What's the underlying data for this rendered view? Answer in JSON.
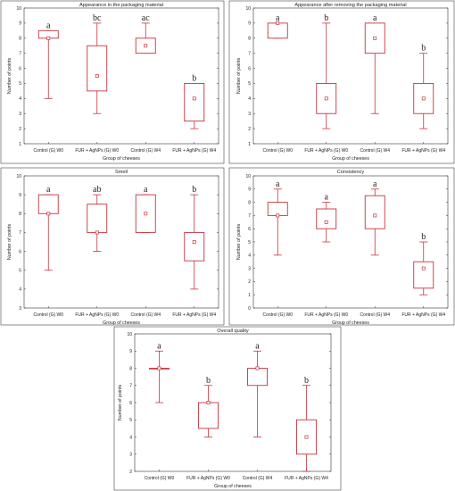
{
  "chart_data": [
    {
      "type": "box",
      "title": "Appearance in the packaging material",
      "xlabel": "Group of cheeses",
      "ylabel": "Number of points",
      "ylim": [
        1,
        10
      ],
      "yticks": [
        1,
        2,
        3,
        4,
        5,
        6,
        7,
        8,
        9,
        10
      ],
      "categories": [
        "Control (G) W0",
        "FUR + AgNPs (G) W0",
        "Control (G) W4",
        "FUR + AgNPs (G) W4"
      ],
      "boxes": [
        {
          "min": 4,
          "q1": 8,
          "median": 8,
          "q3": 8.5,
          "max": 8.5,
          "letter": "a"
        },
        {
          "min": 3,
          "q1": 4.5,
          "median": 5.5,
          "q3": 7.5,
          "max": 9,
          "letter": "bc"
        },
        {
          "min": 7,
          "q1": 7,
          "median": 7.5,
          "q3": 8,
          "max": 9,
          "letter": "ac"
        },
        {
          "min": 2,
          "q1": 2.5,
          "median": 4,
          "q3": 5,
          "max": 5,
          "letter": "b"
        }
      ]
    },
    {
      "type": "box",
      "title": "Appearance after removing the packaging material",
      "xlabel": "Group of cheeses",
      "ylabel": "Number of points",
      "ylim": [
        1,
        10
      ],
      "yticks": [
        1,
        2,
        3,
        4,
        5,
        6,
        7,
        8,
        9,
        10
      ],
      "categories": [
        "Control (G) W0",
        "FUR + AgNPs (G) W0",
        "Control (G) W4",
        "FUR + AgNPs (G) W4"
      ],
      "boxes": [
        {
          "min": 8,
          "q1": 8,
          "median": 9,
          "q3": 9,
          "max": 9,
          "letter": "a"
        },
        {
          "min": 2,
          "q1": 3,
          "median": 4,
          "q3": 5,
          "max": 9,
          "letter": "b"
        },
        {
          "min": 3,
          "q1": 7,
          "median": 8,
          "q3": 9,
          "max": 9,
          "letter": "a"
        },
        {
          "min": 2,
          "q1": 3,
          "median": 4,
          "q3": 5,
          "max": 7,
          "letter": "b"
        }
      ]
    },
    {
      "type": "box",
      "title": "Smell",
      "xlabel": "Group of cheeses",
      "ylabel": "Number of points",
      "ylim": [
        3,
        10
      ],
      "yticks": [
        3,
        4,
        5,
        6,
        7,
        8,
        9,
        10
      ],
      "categories": [
        "Control (G) W0",
        "FUR + AgNPs (G) W0",
        "Control (G) W4",
        "FUR + AgNPs (G) W4"
      ],
      "boxes": [
        {
          "min": 5,
          "q1": 8,
          "median": 8,
          "q3": 9,
          "max": 9,
          "letter": "a"
        },
        {
          "min": 6,
          "q1": 7,
          "median": 7,
          "q3": 8.5,
          "max": 9,
          "letter": "ab"
        },
        {
          "min": 7,
          "q1": 7,
          "median": 8,
          "q3": 9,
          "max": 9,
          "letter": "a"
        },
        {
          "min": 4,
          "q1": 5.5,
          "median": 6.5,
          "q3": 7,
          "max": 9,
          "letter": "b"
        }
      ]
    },
    {
      "type": "box",
      "title": "Consistency",
      "xlabel": "Group of cheeses",
      "ylabel": "Number of points",
      "ylim": [
        0,
        10
      ],
      "yticks": [
        0,
        1,
        2,
        3,
        4,
        5,
        6,
        7,
        8,
        9,
        10
      ],
      "categories": [
        "Control (G) W0",
        "FUR + AgNPs (G) W0",
        "Control (G) W4",
        "FUR + AgNPs (G) W4"
      ],
      "boxes": [
        {
          "min": 4,
          "q1": 7,
          "median": 7,
          "q3": 8,
          "max": 9,
          "letter": "a"
        },
        {
          "min": 5,
          "q1": 6,
          "median": 6.5,
          "q3": 7.5,
          "max": 8,
          "letter": "a"
        },
        {
          "min": 4,
          "q1": 6,
          "median": 7,
          "q3": 8.5,
          "max": 9,
          "letter": "a"
        },
        {
          "min": 1,
          "q1": 1.5,
          "median": 3,
          "q3": 3.5,
          "max": 5,
          "letter": "b"
        }
      ]
    },
    {
      "type": "box",
      "title": "Overall quality",
      "xlabel": "Group of cheeses",
      "ylabel": "Number of points",
      "ylim": [
        2,
        10
      ],
      "yticks": [
        2,
        3,
        4,
        5,
        6,
        7,
        8,
        9,
        10
      ],
      "categories": [
        "Control (G) W0",
        "FUR + AgNPs (G) W0",
        "Control (G) W4",
        "FUR + AgNPs (G) W4"
      ],
      "boxes": [
        {
          "min": 6,
          "q1": 8,
          "median": 8,
          "q3": 8,
          "max": 9,
          "letter": "a"
        },
        {
          "min": 4,
          "q1": 4.5,
          "median": 6,
          "q3": 6,
          "max": 7,
          "letter": "b"
        },
        {
          "min": 4,
          "q1": 7,
          "median": 8,
          "q3": 8,
          "max": 9,
          "letter": "a"
        },
        {
          "min": 2,
          "q1": 3,
          "median": 4,
          "q3": 5,
          "max": 7,
          "letter": "b"
        }
      ]
    }
  ],
  "colors": {
    "box": "#c8323c",
    "frame": "#333333",
    "text": "#222222"
  }
}
